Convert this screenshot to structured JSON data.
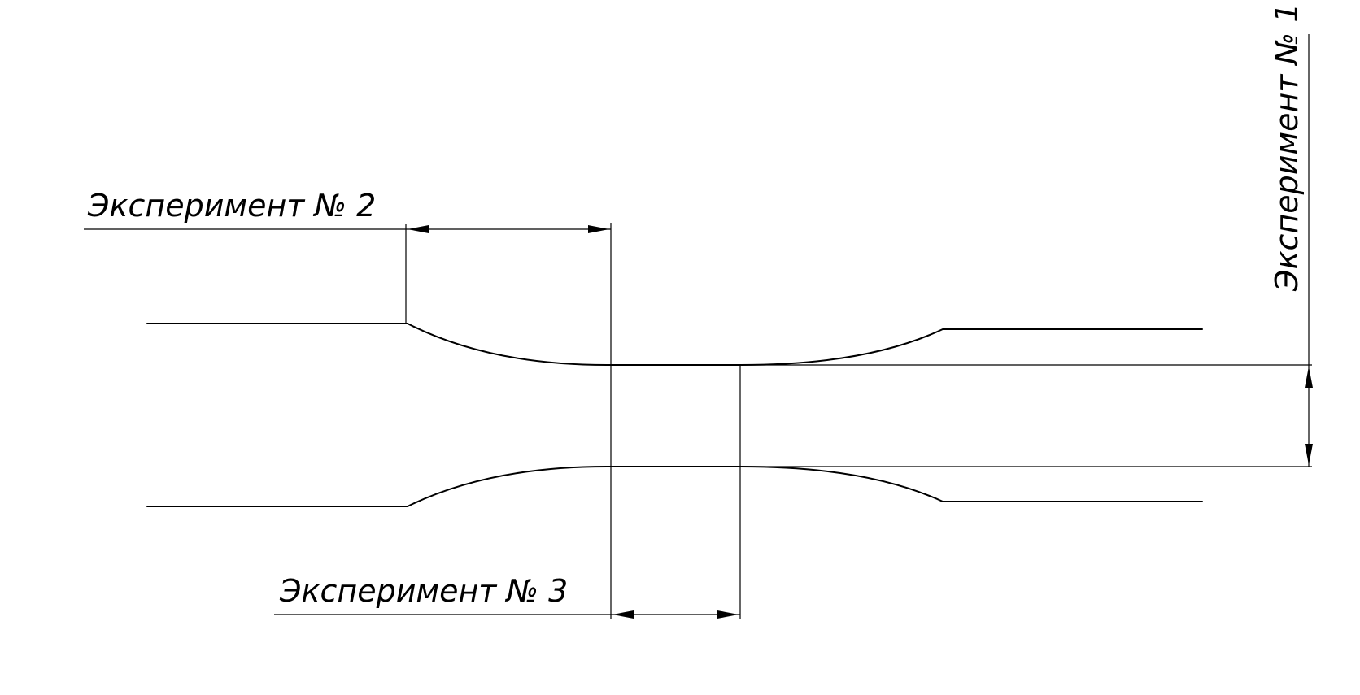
{
  "labels": {
    "experiment_1": "Эксперимент № 1",
    "experiment_2": "Эксперимент № 2",
    "experiment_3": "Эксперимент № 3"
  },
  "colors": {
    "line": "#000000",
    "background": "#ffffff"
  }
}
